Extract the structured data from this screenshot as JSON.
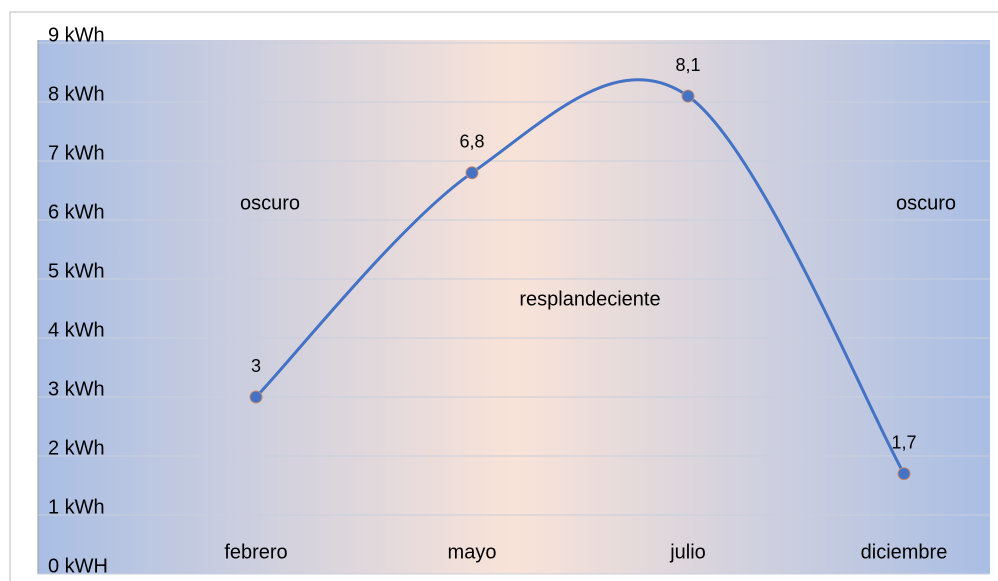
{
  "chart_data": {
    "type": "line",
    "categories": [
      "febrero",
      "mayo",
      "julio",
      "diciembre"
    ],
    "values": [
      3,
      6.8,
      8.1,
      1.7
    ],
    "value_labels": [
      "3",
      "6,8",
      "8,1",
      "1,7"
    ],
    "color": "#4472c4",
    "smooth": true,
    "grid": true,
    "ylim": [
      0,
      9
    ],
    "yticks": [
      {
        "value": 0,
        "label": "0 kWH"
      },
      {
        "value": 1,
        "label": "1 kWh"
      },
      {
        "value": 2,
        "label": "2 kWh"
      },
      {
        "value": 3,
        "label": "3 kWh"
      },
      {
        "value": 4,
        "label": "4 kWh"
      },
      {
        "value": 5,
        "label": "5 kWh"
      },
      {
        "value": 6,
        "label": "6 kWh"
      },
      {
        "value": 7,
        "label": "7 kWh"
      },
      {
        "value": 8,
        "label": "8 kWh"
      },
      {
        "value": 9,
        "label": "9 kWh"
      }
    ],
    "annotations": [
      "oscuro",
      "resplandeciente",
      "oscuro"
    ]
  }
}
